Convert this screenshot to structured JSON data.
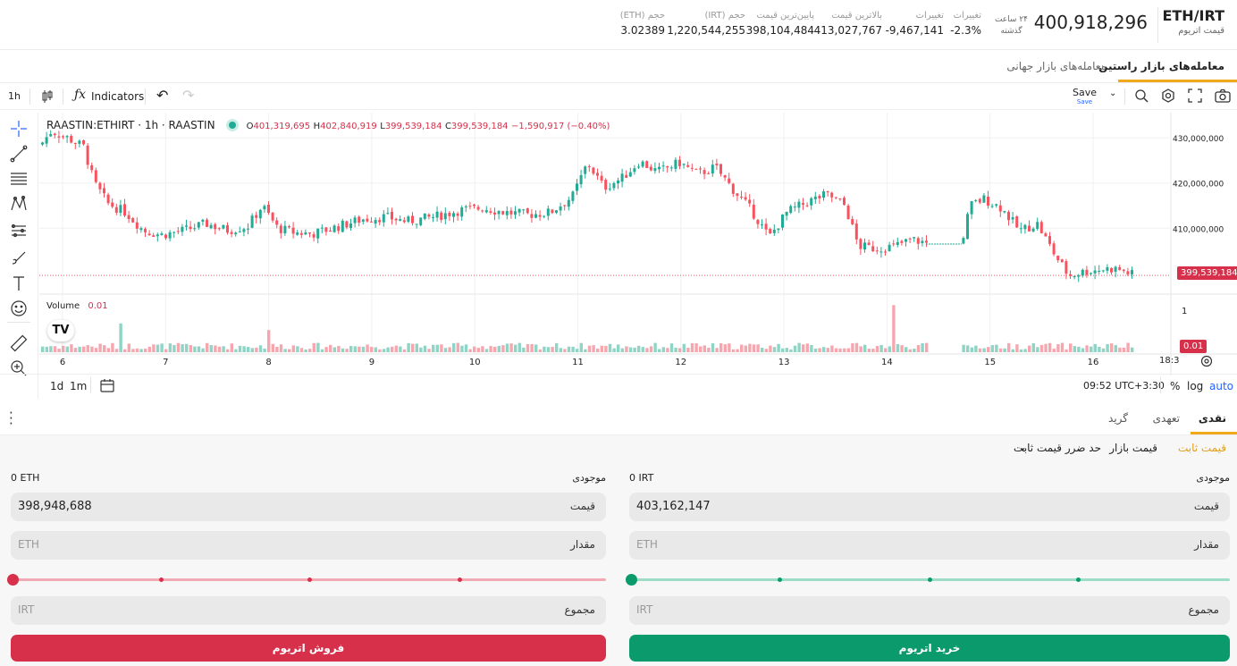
{
  "header": {
    "pair": "ETH/IRT",
    "pair_subtitle": "قیمت اتریوم",
    "last_price": "400,918,296",
    "period_line1": "۲۴ ساعت",
    "period_line2": "گذشته",
    "stats": [
      {
        "label": "تغییرات",
        "value": "-2.3%"
      },
      {
        "label": "تغییرات",
        "value": "-9,467,141"
      },
      {
        "label": "بالاترین قیمت",
        "value": "413,027,767"
      },
      {
        "label": "پایین‌ترین قیمت",
        "value": "398,104,484"
      },
      {
        "label": "حجم (IRT)",
        "value": "1,220,544,255"
      },
      {
        "label": "حجم (ETH)",
        "value": "3.02389"
      }
    ]
  },
  "market_tabs": [
    "معامله‌های بازار راستین",
    "معامله‌های بازار جهانی"
  ],
  "chart_toolbar": {
    "interval": "1h",
    "indicators": "Indicators",
    "save": "Save",
    "save_sub": "Save"
  },
  "chart": {
    "symbol": "RAASTIN:ETHIRT · 1h · RAASTIN",
    "o_label": "O",
    "o": "401,319,695",
    "h_label": "H",
    "h": "402,840,919",
    "l_label": "L",
    "l": "399,539,184",
    "c_label": "C",
    "c": "399,539,184",
    "change": "−1,590,917 (−0.40%)",
    "volume_label": "Volume",
    "volume_value": "0.01",
    "last_price_tag": "399,539,184",
    "volume_tag": "0.01",
    "volume_axis_tick": "1",
    "time_label_end": "18:3",
    "colors": {
      "up": "#22ab94",
      "down": "#f7525f",
      "up_vol": "#8fd4c4",
      "down_vol": "#f5a6ae"
    }
  },
  "chart_data": {
    "type": "candlestick",
    "x_ticks": [
      "6",
      "7",
      "8",
      "9",
      "10",
      "11",
      "12",
      "13",
      "14",
      "15",
      "16"
    ],
    "y_ticks": [
      "430,000,000",
      "420,000,000",
      "410,000,000"
    ],
    "y_tick_values": [
      430000000,
      420000000,
      410000000
    ],
    "ylim": [
      396000000,
      434000000
    ],
    "close_path_anchors": [
      {
        "x": 0,
        "y": 428500000
      },
      {
        "x": 12,
        "y": 431500000
      },
      {
        "x": 30,
        "y": 430000000
      },
      {
        "x": 48,
        "y": 428000000
      },
      {
        "x": 60,
        "y": 420000000
      },
      {
        "x": 75,
        "y": 415500000
      },
      {
        "x": 95,
        "y": 413500000
      },
      {
        "x": 115,
        "y": 409500000
      },
      {
        "x": 135,
        "y": 408500000
      },
      {
        "x": 160,
        "y": 409500000
      },
      {
        "x": 185,
        "y": 411000000
      },
      {
        "x": 210,
        "y": 409500000
      },
      {
        "x": 232,
        "y": 410500000
      },
      {
        "x": 248,
        "y": 415000000
      },
      {
        "x": 265,
        "y": 410000000
      },
      {
        "x": 285,
        "y": 409000000
      },
      {
        "x": 305,
        "y": 408800000
      },
      {
        "x": 330,
        "y": 410200000
      },
      {
        "x": 360,
        "y": 412000000
      },
      {
        "x": 385,
        "y": 412500000
      },
      {
        "x": 410,
        "y": 411500000
      },
      {
        "x": 440,
        "y": 412500000
      },
      {
        "x": 470,
        "y": 414000000
      },
      {
        "x": 495,
        "y": 414500000
      },
      {
        "x": 520,
        "y": 413500000
      },
      {
        "x": 545,
        "y": 413000000
      },
      {
        "x": 570,
        "y": 413500000
      },
      {
        "x": 595,
        "y": 417000000
      },
      {
        "x": 612,
        "y": 424500000
      },
      {
        "x": 630,
        "y": 419000000
      },
      {
        "x": 650,
        "y": 421000000
      },
      {
        "x": 670,
        "y": 424800000
      },
      {
        "x": 690,
        "y": 422500000
      },
      {
        "x": 715,
        "y": 424500000
      },
      {
        "x": 735,
        "y": 422000000
      },
      {
        "x": 755,
        "y": 423500000
      },
      {
        "x": 775,
        "y": 418500000
      },
      {
        "x": 795,
        "y": 414000000
      },
      {
        "x": 815,
        "y": 408000000
      },
      {
        "x": 835,
        "y": 413500000
      },
      {
        "x": 860,
        "y": 416000000
      },
      {
        "x": 880,
        "y": 417500000
      },
      {
        "x": 900,
        "y": 415000000
      },
      {
        "x": 915,
        "y": 406000000
      },
      {
        "x": 935,
        "y": 405500000
      },
      {
        "x": 955,
        "y": 406000000
      },
      {
        "x": 975,
        "y": 407500000
      },
      {
        "x": 995,
        "y": 406500000
      },
      {
        "x": 1015,
        "y": 406500000
      },
      {
        "x": 1030,
        "y": 406500000
      },
      {
        "x": 1040,
        "y": 415000000
      },
      {
        "x": 1055,
        "y": 416500000
      },
      {
        "x": 1075,
        "y": 414500000
      },
      {
        "x": 1095,
        "y": 409500000
      },
      {
        "x": 1115,
        "y": 411000000
      },
      {
        "x": 1135,
        "y": 404000000
      },
      {
        "x": 1150,
        "y": 399500000
      },
      {
        "x": 1170,
        "y": 400500000
      },
      {
        "x": 1190,
        "y": 401000000
      },
      {
        "x": 1205,
        "y": 401000000
      },
      {
        "x": 1224,
        "y": 399539184
      }
    ],
    "gap_line": {
      "x1": 992,
      "x2": 1032,
      "y": 406500000
    },
    "volume_spikes": [
      {
        "x": 88,
        "value": 0.52
      },
      {
        "x": 256,
        "value": 0.4
      },
      {
        "x": 952,
        "value": 0.85
      }
    ]
  },
  "chart_bottom": {
    "ranges": [
      "1d",
      "1m"
    ],
    "time": "09:52 UTC+3:30",
    "percent": "%",
    "log": "log",
    "auto": "auto"
  },
  "order_tabs": [
    "نقدی",
    "تعهدی",
    "گرید"
  ],
  "order_types": {
    "limit": "قیمت ثابت",
    "market": "قیمت بازار",
    "stop": "حد ضرر قیمت ثابت"
  },
  "buy": {
    "balance_label": "موجودی",
    "balance_value": "0 IRT",
    "price_label": "قیمت",
    "price_value": "403,162,147",
    "amount_label": "مقدار",
    "amount_placeholder": "ETH",
    "total_label": "مجموع",
    "total_placeholder": "IRT",
    "button": "خرید اتریوم",
    "color": "#0b9a6b"
  },
  "sell": {
    "balance_label": "موجودی",
    "balance_value": "0 ETH",
    "price_label": "قیمت",
    "price_value": "398,948,688",
    "amount_label": "مقدار",
    "amount_placeholder": "ETH",
    "total_label": "مجموع",
    "total_placeholder": "IRT",
    "button": "فروش اتریوم",
    "color": "#d6304b"
  }
}
